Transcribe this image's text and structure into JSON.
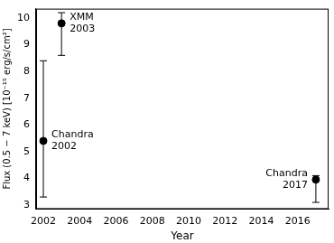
{
  "chart_data": {
    "type": "scatter",
    "x_label": "Year",
    "y_label": "Flux (0.5 − 7 keV) [10⁻¹⁵ erg/s/cm²]",
    "x": [
      2002,
      2003,
      2017
    ],
    "values": [
      5.4,
      9.8,
      3.95
    ],
    "y_low": [
      3.3,
      8.6,
      3.1
    ],
    "y_high": [
      8.4,
      10.2,
      4.1
    ],
    "point_labels": [
      [
        "Chandra",
        "2002"
      ],
      [
        "XMM",
        "2003"
      ],
      [
        "Chandra",
        "2017"
      ]
    ],
    "color": "#000000",
    "marker": "circle",
    "xlim": [
      2001.6,
      2017.7
    ],
    "xticks": [
      2002,
      2004,
      2006,
      2008,
      2010,
      2012,
      2014,
      2016
    ],
    "ylim": [
      2.85,
      10.35
    ],
    "yticks": [
      3,
      4,
      5,
      6,
      7,
      8,
      9,
      10
    ],
    "grid": false
  }
}
